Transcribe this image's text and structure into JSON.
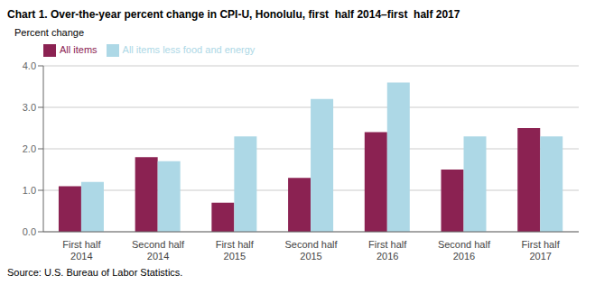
{
  "chart_data": {
    "type": "bar",
    "title": "Chart 1. Over-the-year percent change in CPI-U, Honolulu, first  half 2014–first  half 2017",
    "ylabel": "Percent change",
    "source": "Source: U.S. Bureau of Labor Statistics.",
    "categories": [
      "First half 2014",
      "Second half 2014",
      "First half 2015",
      "Second half 2015",
      "First half 2016",
      "Second half 2016",
      "First half 2017"
    ],
    "series": [
      {
        "name": "All items",
        "color": "#8B2252",
        "values": [
          1.1,
          1.8,
          0.7,
          1.3,
          2.4,
          1.5,
          2.5
        ]
      },
      {
        "name": "All items less food and energy",
        "color": "#ADD8E6",
        "values": [
          1.2,
          1.7,
          2.3,
          3.2,
          3.6,
          2.3,
          2.3
        ]
      }
    ],
    "ylim": [
      0,
      4.0
    ],
    "yticks": [
      {
        "value": 0,
        "label": "0.0"
      },
      {
        "value": 1,
        "label": "1.0"
      },
      {
        "value": 2,
        "label": "2.0"
      },
      {
        "value": 3,
        "label": "3.0"
      },
      {
        "value": 4,
        "label": "4.0"
      }
    ],
    "grid": true,
    "legend": "upper left"
  }
}
